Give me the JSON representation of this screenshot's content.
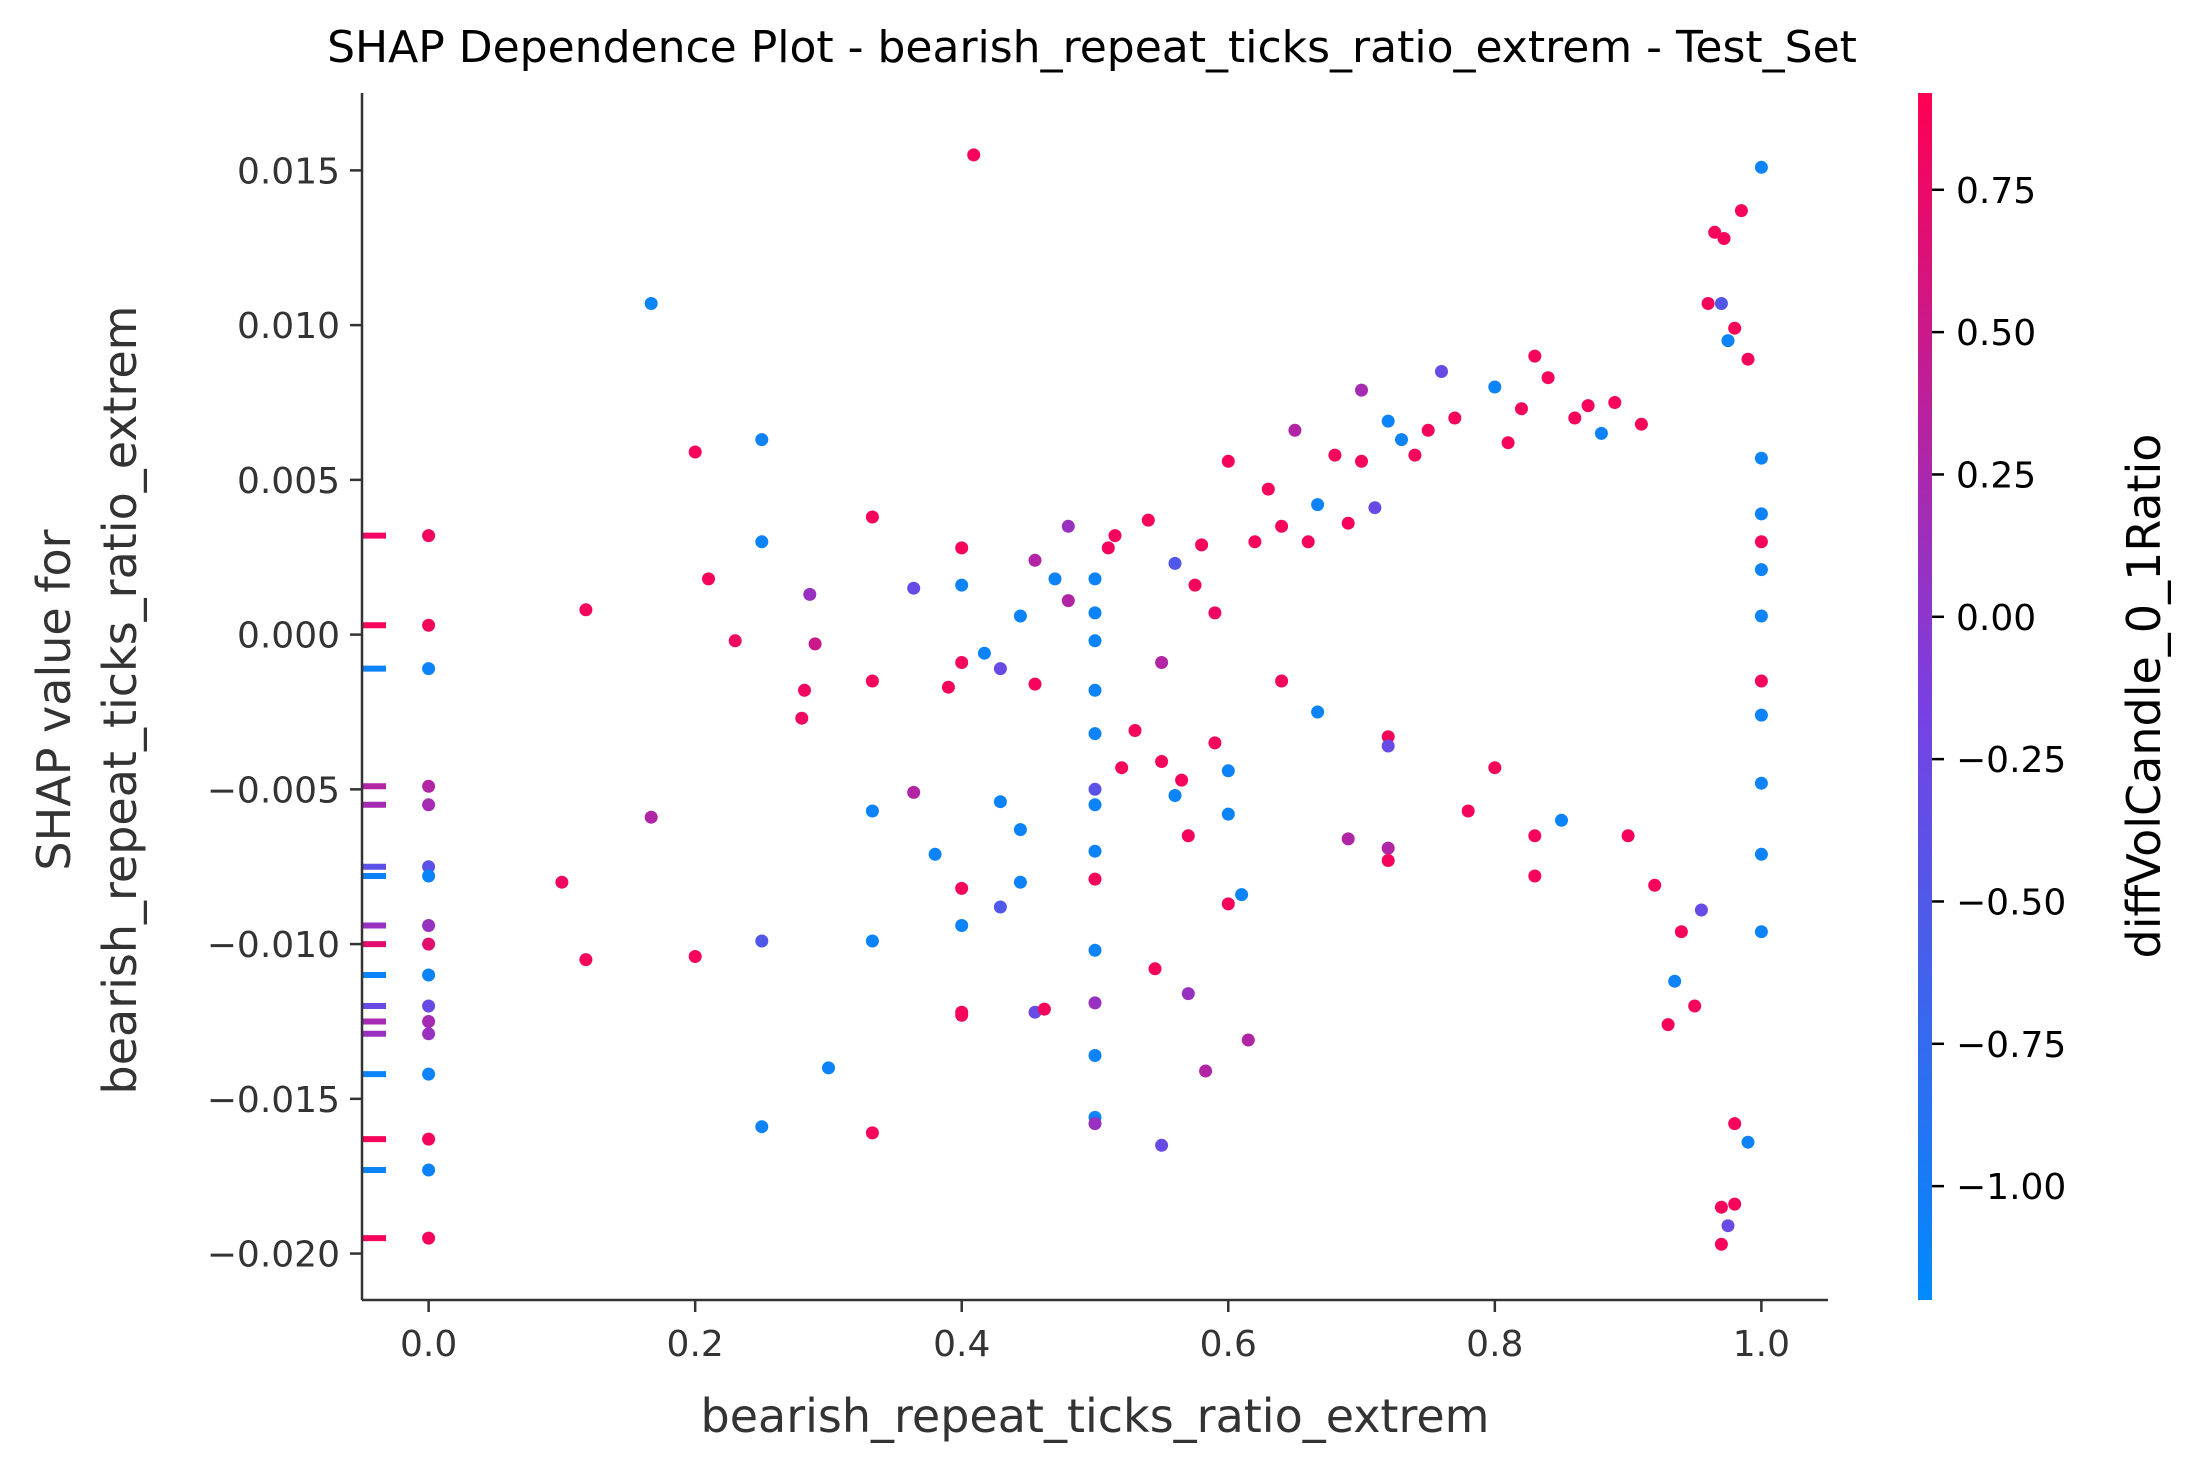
{
  "chart_data": {
    "type": "scatter",
    "title": "SHAP Dependence Plot - bearish_repeat_ticks_ratio_extrem - Test_Set",
    "xlabel": "bearish_repeat_ticks_ratio_extrem",
    "ylabel_line1": "SHAP value for",
    "ylabel_line2": "bearish_repeat_ticks_ratio_extrem",
    "xlim": [
      -0.05,
      1.05
    ],
    "ylim": [
      -0.0215,
      0.0175
    ],
    "xticks": [
      0.0,
      0.2,
      0.4,
      0.6,
      0.8,
      1.0
    ],
    "xtick_labels": [
      "0.0",
      "0.2",
      "0.4",
      "0.6",
      "0.8",
      "1.0"
    ],
    "yticks": [
      0.015,
      0.01,
      0.005,
      0.0,
      -0.005,
      -0.01,
      -0.015,
      -0.02
    ],
    "ytick_labels": [
      "0.015",
      "0.010",
      "0.005",
      "0.000",
      "−0.005",
      "−0.010",
      "−0.015",
      "−0.020"
    ],
    "grid": false,
    "colorbar": {
      "label": "diffVolCandle_0_1Ratio",
      "range": [
        -1.2,
        0.92
      ],
      "ticks": [
        0.75,
        0.5,
        0.25,
        0.0,
        -0.25,
        -0.5,
        -0.75,
        -1.0
      ],
      "tick_labels": [
        "0.75",
        "0.50",
        "0.25",
        "0.00",
        "−0.25",
        "−0.50",
        "−0.75",
        "−1.00"
      ],
      "colors": [
        "#008afb",
        "#7a3fe0",
        "#ff0052"
      ]
    },
    "marker_color_low": "#008afb",
    "marker_color_high": "#ff0052",
    "points": [
      [
        0.0,
        0.0032,
        0.8
      ],
      [
        0.0,
        0.0003,
        0.85
      ],
      [
        0.0,
        -0.0011,
        -1.1
      ],
      [
        0.0,
        -0.0049,
        0.3
      ],
      [
        0.0,
        -0.0055,
        0.2
      ],
      [
        0.0,
        -0.0075,
        -0.4
      ],
      [
        0.0,
        -0.0078,
        -1.1
      ],
      [
        0.0,
        -0.0094,
        0.1
      ],
      [
        0.0,
        -0.01,
        0.7
      ],
      [
        0.0,
        -0.011,
        -1.1
      ],
      [
        0.0,
        -0.012,
        -0.3
      ],
      [
        0.0,
        -0.0125,
        0.2
      ],
      [
        0.0,
        -0.0129,
        0.1
      ],
      [
        0.0,
        -0.0142,
        -1.1
      ],
      [
        0.0,
        -0.0163,
        0.85
      ],
      [
        0.0,
        -0.0173,
        -1.1
      ],
      [
        0.0,
        -0.0195,
        0.85
      ],
      [
        0.1,
        -0.008,
        0.8
      ],
      [
        0.118,
        0.0008,
        0.85
      ],
      [
        0.118,
        -0.0105,
        0.85
      ],
      [
        0.167,
        0.0107,
        -1.1
      ],
      [
        0.167,
        -0.0059,
        0.3
      ],
      [
        0.2,
        0.0059,
        0.85
      ],
      [
        0.2,
        -0.0104,
        0.85
      ],
      [
        0.21,
        0.0018,
        0.85
      ],
      [
        0.23,
        -0.0002,
        0.8
      ],
      [
        0.25,
        0.0063,
        -1.1
      ],
      [
        0.25,
        0.003,
        -1.1
      ],
      [
        0.25,
        -0.0099,
        -0.5
      ],
      [
        0.25,
        -0.0159,
        -1.1
      ],
      [
        0.28,
        -0.0027,
        0.8
      ],
      [
        0.282,
        -0.0018,
        0.8
      ],
      [
        0.286,
        0.0013,
        0.1
      ],
      [
        0.29,
        -0.0003,
        0.5
      ],
      [
        0.3,
        -0.014,
        -1.1
      ],
      [
        0.333,
        0.0038,
        0.85
      ],
      [
        0.333,
        -0.0015,
        0.85
      ],
      [
        0.333,
        -0.0057,
        -1.1
      ],
      [
        0.333,
        -0.0099,
        -1.1
      ],
      [
        0.333,
        -0.0161,
        0.85
      ],
      [
        0.364,
        0.0015,
        -0.3
      ],
      [
        0.364,
        -0.0051,
        0.3
      ],
      [
        0.38,
        -0.0071,
        -1.1
      ],
      [
        0.39,
        -0.0017,
        0.85
      ],
      [
        0.4,
        0.0028,
        0.85
      ],
      [
        0.4,
        0.0016,
        -1.1
      ],
      [
        0.4,
        -0.0009,
        0.85
      ],
      [
        0.4,
        -0.0082,
        0.85
      ],
      [
        0.4,
        -0.0094,
        -1.1
      ],
      [
        0.4,
        -0.0122,
        0.85
      ],
      [
        0.4,
        -0.0123,
        0.85
      ],
      [
        0.409,
        0.0155,
        0.85
      ],
      [
        0.417,
        -0.0006,
        -1.1
      ],
      [
        0.429,
        -0.0011,
        -0.3
      ],
      [
        0.429,
        -0.0054,
        -1.1
      ],
      [
        0.429,
        -0.0088,
        -0.5
      ],
      [
        0.444,
        0.0006,
        -1.1
      ],
      [
        0.444,
        -0.0063,
        -1.1
      ],
      [
        0.444,
        -0.008,
        -1.1
      ],
      [
        0.455,
        0.0024,
        0.3
      ],
      [
        0.455,
        -0.0016,
        0.85
      ],
      [
        0.455,
        -0.0122,
        -0.3
      ],
      [
        0.462,
        -0.0121,
        0.85
      ],
      [
        0.47,
        0.0018,
        -1.1
      ],
      [
        0.48,
        0.0035,
        0.1
      ],
      [
        0.48,
        0.0011,
        0.3
      ],
      [
        0.5,
        0.0018,
        -1.1
      ],
      [
        0.5,
        0.0007,
        -1.1
      ],
      [
        0.5,
        -0.0002,
        -1.1
      ],
      [
        0.5,
        -0.0018,
        -1.1
      ],
      [
        0.5,
        -0.0032,
        -1.1
      ],
      [
        0.5,
        -0.005,
        -0.4
      ],
      [
        0.5,
        -0.0055,
        -1.1
      ],
      [
        0.5,
        -0.007,
        -1.1
      ],
      [
        0.5,
        -0.0079,
        0.85
      ],
      [
        0.5,
        -0.0102,
        -1.1
      ],
      [
        0.5,
        -0.0119,
        0.1
      ],
      [
        0.5,
        -0.0136,
        -1.1
      ],
      [
        0.5,
        -0.0156,
        -1.1
      ],
      [
        0.5,
        -0.0158,
        0.1
      ],
      [
        0.51,
        0.0028,
        0.85
      ],
      [
        0.515,
        0.0032,
        0.85
      ],
      [
        0.52,
        -0.0043,
        0.85
      ],
      [
        0.53,
        -0.0031,
        0.85
      ],
      [
        0.54,
        0.0037,
        0.85
      ],
      [
        0.545,
        -0.0108,
        0.85
      ],
      [
        0.55,
        -0.0009,
        0.3
      ],
      [
        0.55,
        -0.0041,
        0.85
      ],
      [
        0.55,
        -0.0165,
        -0.3
      ],
      [
        0.56,
        0.0023,
        -0.5
      ],
      [
        0.56,
        -0.0052,
        -1.1
      ],
      [
        0.565,
        -0.0047,
        0.85
      ],
      [
        0.57,
        -0.0065,
        0.85
      ],
      [
        0.57,
        -0.0116,
        0.1
      ],
      [
        0.575,
        0.0016,
        0.85
      ],
      [
        0.58,
        0.0029,
        0.85
      ],
      [
        0.583,
        -0.0141,
        0.3
      ],
      [
        0.59,
        0.0007,
        0.8
      ],
      [
        0.59,
        -0.0035,
        0.85
      ],
      [
        0.6,
        0.0056,
        0.85
      ],
      [
        0.6,
        -0.0044,
        -1.1
      ],
      [
        0.6,
        -0.0058,
        -1.1
      ],
      [
        0.6,
        -0.0087,
        0.85
      ],
      [
        0.61,
        -0.0084,
        -1.1
      ],
      [
        0.615,
        -0.0131,
        0.3
      ],
      [
        0.62,
        0.003,
        0.85
      ],
      [
        0.63,
        0.0047,
        0.85
      ],
      [
        0.64,
        0.0035,
        0.85
      ],
      [
        0.64,
        -0.0015,
        0.85
      ],
      [
        0.65,
        0.0066,
        0.3
      ],
      [
        0.66,
        0.003,
        0.85
      ],
      [
        0.667,
        0.0042,
        -1.1
      ],
      [
        0.667,
        -0.0025,
        -1.1
      ],
      [
        0.68,
        0.0058,
        0.85
      ],
      [
        0.69,
        0.0036,
        0.85
      ],
      [
        0.69,
        -0.0066,
        0.3
      ],
      [
        0.7,
        0.0079,
        0.2
      ],
      [
        0.7,
        0.0056,
        0.85
      ],
      [
        0.71,
        0.0041,
        -0.3
      ],
      [
        0.72,
        0.0069,
        -1.1
      ],
      [
        0.72,
        -0.0033,
        0.85
      ],
      [
        0.72,
        -0.0036,
        -0.3
      ],
      [
        0.72,
        -0.0069,
        0.3
      ],
      [
        0.72,
        -0.0073,
        0.85
      ],
      [
        0.73,
        0.0063,
        -1.1
      ],
      [
        0.74,
        0.0058,
        0.85
      ],
      [
        0.75,
        0.0066,
        0.85
      ],
      [
        0.76,
        0.0085,
        -0.3
      ],
      [
        0.77,
        0.007,
        0.85
      ],
      [
        0.78,
        -0.0057,
        0.85
      ],
      [
        0.8,
        0.008,
        -1.1
      ],
      [
        0.8,
        -0.0043,
        0.85
      ],
      [
        0.81,
        0.0062,
        0.85
      ],
      [
        0.82,
        0.0073,
        0.85
      ],
      [
        0.83,
        0.009,
        0.85
      ],
      [
        0.83,
        -0.0078,
        0.85
      ],
      [
        0.83,
        -0.0065,
        0.85
      ],
      [
        0.84,
        0.0083,
        0.85
      ],
      [
        0.85,
        -0.006,
        -1.1
      ],
      [
        0.86,
        0.007,
        0.85
      ],
      [
        0.87,
        0.0074,
        0.85
      ],
      [
        0.88,
        0.0065,
        -1.1
      ],
      [
        0.89,
        0.0075,
        0.85
      ],
      [
        0.9,
        -0.0065,
        0.85
      ],
      [
        0.91,
        0.0068,
        0.85
      ],
      [
        0.92,
        -0.0081,
        0.85
      ],
      [
        0.93,
        -0.0126,
        0.85
      ],
      [
        0.935,
        -0.0112,
        -1.1
      ],
      [
        0.94,
        -0.0096,
        0.85
      ],
      [
        0.95,
        -0.012,
        0.85
      ],
      [
        0.955,
        -0.0089,
        -0.3
      ],
      [
        0.96,
        0.0107,
        0.85
      ],
      [
        0.965,
        0.013,
        0.85
      ],
      [
        0.97,
        0.0107,
        -0.5
      ],
      [
        0.972,
        0.0128,
        0.85
      ],
      [
        0.975,
        0.0095,
        -1.1
      ],
      [
        0.98,
        0.0099,
        0.85
      ],
      [
        0.985,
        0.0137,
        0.85
      ],
      [
        0.99,
        0.0089,
        0.85
      ],
      [
        1.0,
        0.0151,
        -1.1
      ],
      [
        1.0,
        0.0057,
        -1.1
      ],
      [
        1.0,
        0.0039,
        -1.1
      ],
      [
        1.0,
        0.0021,
        -1.1
      ],
      [
        1.0,
        0.0006,
        -1.1
      ],
      [
        1.0,
        -0.0026,
        -1.1
      ],
      [
        1.0,
        -0.0048,
        -1.1
      ],
      [
        1.0,
        -0.0071,
        -1.1
      ],
      [
        1.0,
        -0.0096,
        -1.1
      ],
      [
        1.0,
        -0.0015,
        0.85
      ],
      [
        1.0,
        0.003,
        0.85
      ],
      [
        0.99,
        -0.0164,
        -1.1
      ],
      [
        0.98,
        -0.0158,
        0.85
      ],
      [
        0.97,
        -0.0185,
        0.85
      ],
      [
        0.975,
        -0.0191,
        -0.3
      ],
      [
        0.97,
        -0.0197,
        0.85
      ],
      [
        0.98,
        -0.0184,
        0.85
      ]
    ]
  }
}
